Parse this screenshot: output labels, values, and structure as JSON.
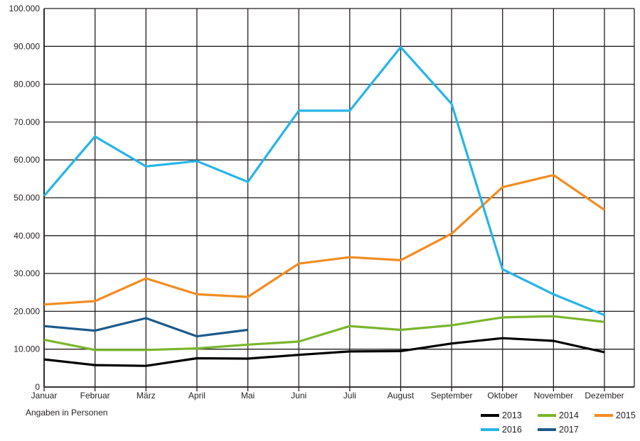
{
  "chart_data": {
    "type": "line",
    "categories": [
      "Januar",
      "Februar",
      "März",
      "April",
      "Mai",
      "Juni",
      "Juli",
      "August",
      "September",
      "Oktober",
      "November",
      "Dezember"
    ],
    "yticks": [
      "0",
      "10.000",
      "20.000",
      "30.000",
      "40.000",
      "50.000",
      "60.000",
      "70.000",
      "80.000",
      "90.000",
      "100.000"
    ],
    "ylim": [
      0,
      100000
    ],
    "grid": true,
    "legend_position": "bottom-right",
    "note": "Angaben in Personen",
    "series": [
      {
        "name": "2013",
        "color": "#000000",
        "values": [
          7300,
          5800,
          5600,
          7600,
          7500,
          8500,
          9400,
          9500,
          11500,
          12900,
          12200,
          9200
        ]
      },
      {
        "name": "2014",
        "color": "#7ab62c",
        "values": [
          12500,
          9800,
          9800,
          10200,
          11200,
          12000,
          16100,
          15100,
          16300,
          18400,
          18700,
          17200
        ]
      },
      {
        "name": "2015",
        "color": "#f28c21",
        "values": [
          21800,
          22700,
          28700,
          24500,
          23800,
          32600,
          34300,
          33500,
          40500,
          52800,
          56000,
          46800
        ]
      },
      {
        "name": "2016",
        "color": "#27b4e8",
        "values": [
          50500,
          66200,
          58300,
          59700,
          54200,
          73000,
          73000,
          89800,
          74800,
          31100,
          24500,
          19000
        ]
      },
      {
        "name": "2017",
        "color": "#1b5a8a",
        "values": [
          16100,
          14900,
          18200,
          13400,
          15100,
          null,
          null,
          null,
          null,
          null,
          null,
          null
        ]
      }
    ]
  }
}
